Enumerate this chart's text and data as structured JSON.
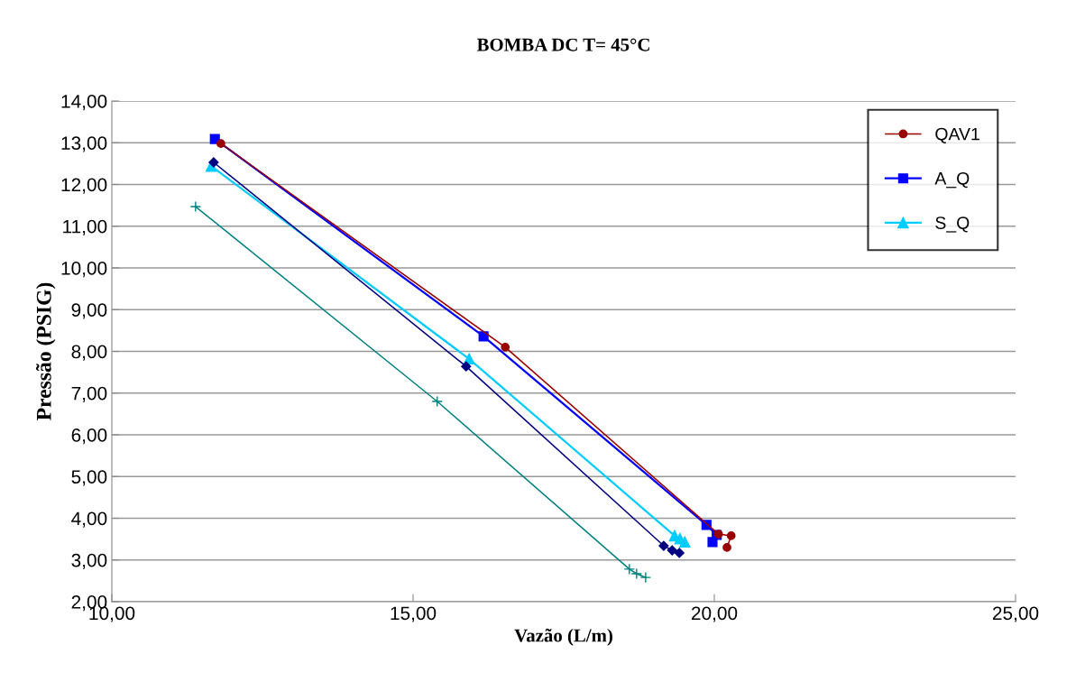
{
  "chart_data": {
    "type": "line",
    "title": "BOMBA DC T= 45°C",
    "xlabel": "Vazão (L/m)",
    "ylabel": "Pressão (PSIG)",
    "series": [
      {
        "name": "QAV1",
        "color": "#990000",
        "marker": "circle",
        "x": [
          11.81,
          16.53,
          20.07,
          20.28,
          20.21
        ],
        "values": [
          12.98,
          8.1,
          3.62,
          3.58,
          3.3
        ]
      },
      {
        "color": "#000080",
        "marker": "diamond",
        "x": [
          11.69,
          15.88,
          19.16,
          19.3,
          19.42
        ],
        "values": [
          12.53,
          7.64,
          3.34,
          3.23,
          3.17
        ]
      },
      {
        "color": "#008080",
        "marker": "cross",
        "x": [
          11.39,
          15.4,
          18.59,
          18.71,
          18.86
        ],
        "values": [
          11.47,
          6.8,
          2.78,
          2.67,
          2.58
        ]
      },
      {
        "name": "A_Q",
        "color": "#0000ff",
        "marker": "square",
        "x": [
          11.71,
          16.17,
          19.87,
          20.04,
          19.97
        ],
        "values": [
          13.09,
          8.36,
          3.84,
          3.6,
          3.43
        ]
      },
      {
        "name": "S_Q",
        "color": "#00ccff",
        "marker": "triangle",
        "x": [
          11.65,
          15.93,
          19.34,
          19.43,
          19.51
        ],
        "values": [
          12.44,
          7.82,
          3.58,
          3.51,
          3.43
        ]
      }
    ],
    "xlim": [
      10,
      25
    ],
    "xticks": [
      {
        "value": 10,
        "label": "10,00"
      },
      {
        "value": 15,
        "label": "15,00"
      },
      {
        "value": 20,
        "label": "20,00"
      },
      {
        "value": 25,
        "label": "25,00"
      }
    ],
    "ylim": [
      2,
      14
    ],
    "yticks": [
      {
        "value": 2,
        "label": "2,00"
      },
      {
        "value": 3,
        "label": "3,00"
      },
      {
        "value": 4,
        "label": "4,00"
      },
      {
        "value": 5,
        "label": "5,00"
      },
      {
        "value": 6,
        "label": "6,00"
      },
      {
        "value": 7,
        "label": "7,00"
      },
      {
        "value": 8,
        "label": "8,00"
      },
      {
        "value": 9,
        "label": "9,00"
      },
      {
        "value": 10,
        "label": "10,00"
      },
      {
        "value": 11,
        "label": "11,00"
      },
      {
        "value": 12,
        "label": "12,00"
      },
      {
        "value": 13,
        "label": "13,00"
      },
      {
        "value": 14,
        "label": "14,00"
      }
    ],
    "grid": "y",
    "legend": "top right"
  }
}
